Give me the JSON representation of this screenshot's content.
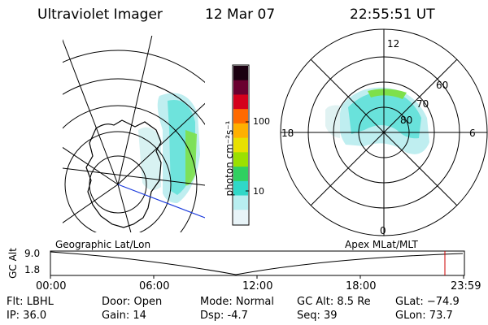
{
  "header": {
    "title": "Ultraviolet Imager",
    "date": "12 Mar 07",
    "time": "22:55:51 UT"
  },
  "colorbar": {
    "unit_label": "photon cm⁻²s⁻¹",
    "ticks": [
      "100",
      "10"
    ],
    "scale": "log",
    "colors": [
      "#1a0010",
      "#6a0030",
      "#d4001c",
      "#ff6a00",
      "#ffb000",
      "#e8e000",
      "#9be000",
      "#30d060",
      "#30d8c8",
      "#b8eef0",
      "#e8f4f8"
    ]
  },
  "polar_plot": {
    "mlt_labels": [
      "12",
      "18",
      "6",
      "0"
    ],
    "lat_labels": [
      "60",
      "70",
      "80"
    ]
  },
  "timeline": {
    "title_left": "Geographic Lat/Lon",
    "title_right": "Apex MLat/MLT",
    "ylabel": "GC Alt",
    "y_ticks": [
      "9.0",
      "1.8"
    ],
    "x_ticks": [
      "00:00",
      "06:00",
      "12:00",
      "18:00",
      "23:59"
    ],
    "marker_color": "#cc0000"
  },
  "status": {
    "flt": "Flt: LBHL",
    "ip": "IP: 36.0",
    "door": "Door: Open",
    "gain": "Gain: 14",
    "mode": "Mode: Normal",
    "dsp": "Dsp:    -4.7",
    "gc_alt": "GC Alt: 8.5 Re",
    "seq": "Seq: 39",
    "glat": "GLat: −74.9",
    "glon": "GLon:  73.7"
  }
}
